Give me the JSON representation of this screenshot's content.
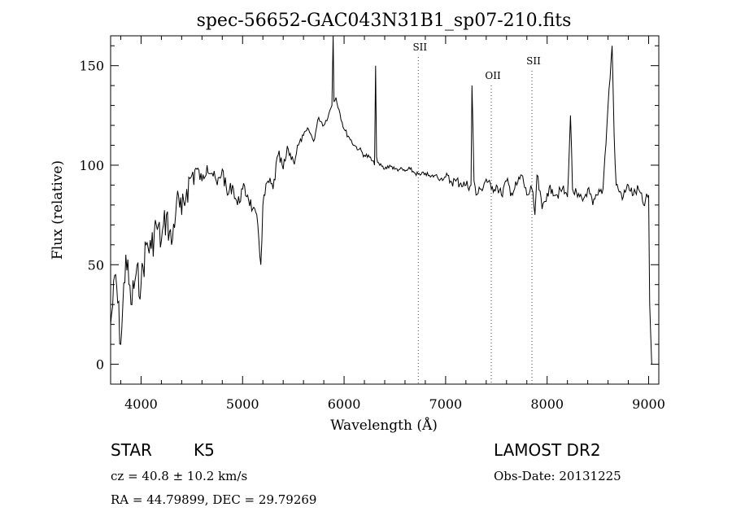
{
  "chart_data": {
    "type": "line",
    "title": "spec-56652-GAC043N31B1_sp07-210.fits",
    "xlabel": "Wavelength (Å)",
    "ylabel": "Flux (relative)",
    "xlim": [
      3700,
      9100
    ],
    "ylim": [
      -10,
      165
    ],
    "xticks": [
      4000,
      5000,
      6000,
      7000,
      8000,
      9000
    ],
    "yticks": [
      0,
      50,
      100,
      150
    ],
    "grid": false,
    "series": [
      {
        "x": [
          3700,
          3750,
          3800,
          3850,
          3900,
          3950,
          4000,
          4050,
          4100,
          4150,
          4200,
          4250,
          4300,
          4350,
          4400,
          4450,
          4500,
          4550,
          4600,
          4650,
          4700,
          4750,
          4800,
          4850,
          4900,
          4950,
          5000,
          5050,
          5100,
          5150,
          5180,
          5200,
          5250,
          5300,
          5350,
          5400,
          5450,
          5500,
          5550,
          5600,
          5650,
          5700,
          5750,
          5800,
          5850,
          5880,
          5892,
          5900,
          5920,
          5950,
          6000,
          6050,
          6100,
          6150,
          6200,
          6250,
          6300,
          6310,
          6320,
          6350,
          6400,
          6450,
          6500,
          6550,
          6600,
          6650,
          6700,
          6750,
          6800,
          6850,
          6900,
          6950,
          7000,
          7050,
          7100,
          7150,
          7200,
          7250,
          7260,
          7280,
          7300,
          7350,
          7400,
          7450,
          7500,
          7550,
          7600,
          7650,
          7700,
          7750,
          7800,
          7850,
          7880,
          7900,
          7950,
          8000,
          8050,
          8100,
          8150,
          8200,
          8230,
          8250,
          8300,
          8350,
          8400,
          8450,
          8500,
          8550,
          8600,
          8640,
          8660,
          8680,
          8700,
          8750,
          8800,
          8850,
          8900,
          8950,
          9000,
          9010,
          9030
        ],
        "y": [
          20,
          45,
          10,
          55,
          30,
          45,
          40,
          60,
          58,
          70,
          62,
          75,
          60,
          82,
          75,
          88,
          95,
          98,
          92,
          100,
          96,
          90,
          98,
          85,
          90,
          80,
          88,
          85,
          78,
          70,
          50,
          80,
          92,
          88,
          105,
          98,
          108,
          102,
          110,
          115,
          118,
          112,
          124,
          120,
          126,
          130,
          165,
          132,
          134,
          128,
          118,
          114,
          110,
          108,
          105,
          104,
          100,
          150,
          104,
          100,
          98,
          100,
          98,
          98,
          97,
          98,
          96,
          95,
          96,
          94,
          95,
          93,
          94,
          92,
          92,
          91,
          90,
          90,
          140,
          92,
          85,
          88,
          93,
          88,
          90,
          85,
          92,
          86,
          90,
          95,
          85,
          88,
          75,
          95,
          78,
          86,
          88,
          85,
          88,
          84,
          125,
          88,
          84,
          82,
          88,
          80,
          85,
          88,
          130,
          160,
          115,
          90,
          88,
          84,
          90,
          85,
          88,
          80,
          85,
          30,
          0
        ]
      }
    ],
    "line_markers": [
      {
        "label": "SII",
        "x": 6731
      },
      {
        "label": "OII",
        "x": 7450
      },
      {
        "label": "SII",
        "x": 7850
      }
    ]
  },
  "info": {
    "object_class": "STAR",
    "subclass": "K5",
    "cz": "cz = 40.8 ± 10.2 km/s",
    "coords": "RA =  44.79899, DEC =  29.79269",
    "survey": "LAMOST DR2",
    "obs_date": "Obs-Date: 20131225"
  }
}
